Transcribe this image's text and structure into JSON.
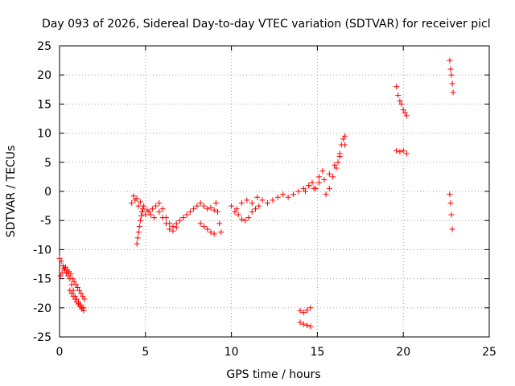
{
  "chart_data": {
    "type": "scatter",
    "title": "Day 093 of 2026, Sidereal Day-to-day VTEC variation (SDTVAR) for receiver picl",
    "xlabel": "GPS time / hours",
    "ylabel": "SDTVAR / TECUs",
    "xlim": [
      0,
      25
    ],
    "ylim": [
      -25,
      25
    ],
    "xticks": [
      0,
      5,
      10,
      15,
      20,
      25
    ],
    "yticks": [
      -25,
      -20,
      -15,
      -10,
      -5,
      0,
      5,
      10,
      15,
      20,
      25
    ],
    "grid": true,
    "marker": "+",
    "color": "#ff0000",
    "segments": [
      {
        "x": [
          0.0,
          0.1,
          0.2,
          0.3,
          0.4,
          0.5,
          0.6,
          0.7,
          0.8,
          0.9,
          1.0,
          1.1,
          1.2,
          1.3,
          1.4
        ],
        "y": [
          -11.5,
          -12.0,
          -12.8,
          -13.5,
          -14.0,
          -14.5,
          -15.0,
          -16.0,
          -17.0,
          -18.0,
          -18.5,
          -19.0,
          -19.5,
          -20.0,
          -20.5
        ]
      },
      {
        "x": [
          0.05,
          0.15,
          0.25,
          0.35,
          0.45,
          0.55,
          0.65,
          0.75,
          0.85,
          0.95,
          1.05,
          1.15,
          1.25,
          1.35,
          1.45
        ],
        "y": [
          -14.5,
          -14.0,
          -13.2,
          -13.0,
          -13.5,
          -13.8,
          -14.2,
          -15.0,
          -15.5,
          -16.0,
          -16.5,
          -17.0,
          -17.5,
          -18.0,
          -18.5
        ]
      },
      {
        "x": [
          0.6,
          0.7,
          0.8,
          0.9,
          1.0,
          1.1,
          1.2,
          1.3,
          1.4
        ],
        "y": [
          -17.0,
          -17.5,
          -18.0,
          -18.5,
          -19.0,
          -19.3,
          -19.8,
          -20.2,
          -20.0
        ]
      },
      {
        "x": [
          4.2,
          4.4,
          4.6,
          4.8,
          5.0,
          5.2,
          5.4,
          5.6,
          5.8,
          6.0,
          6.2,
          6.4,
          6.6,
          6.8,
          7.0,
          7.2,
          7.4,
          7.6,
          7.8,
          8.0,
          8.2,
          8.4,
          8.6,
          8.8,
          9.0
        ],
        "y": [
          -2.0,
          -1.5,
          -2.5,
          -3.5,
          -4.0,
          -3.5,
          -3.0,
          -2.5,
          -2.0,
          -3.0,
          -4.5,
          -5.5,
          -6.0,
          -5.5,
          -5.0,
          -4.5,
          -4.0,
          -3.5,
          -3.0,
          -2.5,
          -2.0,
          -2.5,
          -3.0,
          -2.8,
          -3.2
        ]
      },
      {
        "x": [
          4.5,
          4.55,
          4.6,
          4.65,
          4.7,
          4.75,
          4.8,
          4.85
        ],
        "y": [
          -9.0,
          -8.0,
          -7.0,
          -6.0,
          -5.0,
          -4.2,
          -3.5,
          -3.0
        ]
      },
      {
        "x": [
          4.3,
          4.5,
          4.7,
          4.9,
          5.1,
          5.3,
          5.5
        ],
        "y": [
          -0.8,
          -1.2,
          -1.8,
          -2.5,
          -3.2,
          -4.0,
          -4.5
        ]
      },
      {
        "x": [
          5.8,
          6.0,
          6.2,
          6.4,
          6.6,
          6.8
        ],
        "y": [
          -3.5,
          -4.5,
          -5.5,
          -6.5,
          -6.8,
          -6.2
        ]
      },
      {
        "x": [
          8.2,
          8.4,
          8.6,
          8.8,
          9.0
        ],
        "y": [
          -5.5,
          -6.0,
          -6.5,
          -7.0,
          -7.3
        ]
      },
      {
        "x": [
          9.1,
          9.2,
          9.3,
          9.4
        ],
        "y": [
          -2.0,
          -3.5,
          -5.5,
          -7.0
        ]
      },
      {
        "x": [
          10.0,
          10.3,
          10.6,
          10.9,
          11.2,
          11.5,
          11.8,
          12.1,
          12.4,
          12.7,
          13.0,
          13.3,
          13.6,
          13.9,
          14.2,
          14.5,
          14.8,
          15.1,
          15.4,
          15.7,
          16.0,
          16.3,
          16.6
        ],
        "y": [
          -2.5,
          -3.0,
          -2.0,
          -1.5,
          -2.0,
          -1.0,
          -1.5,
          -2.0,
          -1.5,
          -1.0,
          -0.5,
          -1.0,
          -0.5,
          0.0,
          0.5,
          1.0,
          0.5,
          1.5,
          2.0,
          3.0,
          4.5,
          6.0,
          8.0
        ]
      },
      {
        "x": [
          10.2,
          10.4,
          10.6,
          10.8,
          11.0,
          11.2,
          11.4,
          11.6
        ],
        "y": [
          -3.5,
          -4.0,
          -4.8,
          -5.0,
          -4.5,
          -3.5,
          -3.0,
          -2.5
        ]
      },
      {
        "x": [
          14.3,
          14.5,
          14.7,
          14.9,
          15.1,
          15.3,
          15.5,
          15.7,
          15.9,
          16.1
        ],
        "y": [
          0.0,
          1.0,
          1.5,
          0.5,
          2.5,
          3.5,
          -0.5,
          0.5,
          2.5,
          4.0
        ]
      },
      {
        "x": [
          16.2,
          16.3,
          16.4,
          16.5,
          16.6
        ],
        "y": [
          5.0,
          6.5,
          8.0,
          9.0,
          9.5
        ]
      },
      {
        "x": [
          14.0,
          14.2,
          14.4,
          14.6
        ],
        "y": [
          -20.5,
          -20.8,
          -20.4,
          -20.0
        ]
      },
      {
        "x": [
          14.0,
          14.2,
          14.4,
          14.6
        ],
        "y": [
          -22.5,
          -22.8,
          -23.0,
          -23.2
        ]
      },
      {
        "x": [
          19.6,
          19.7,
          19.8,
          19.9,
          20.0,
          20.1,
          20.2
        ],
        "y": [
          18.0,
          16.5,
          15.5,
          15.0,
          14.0,
          13.5,
          13.0
        ]
      },
      {
        "x": [
          19.6,
          19.8,
          20.0,
          20.2
        ],
        "y": [
          7.0,
          6.8,
          7.0,
          6.5
        ]
      },
      {
        "x": [
          22.7,
          22.75,
          22.8,
          22.85,
          22.9
        ],
        "y": [
          22.5,
          21.0,
          20.0,
          18.5,
          17.0
        ]
      },
      {
        "x": [
          22.7,
          22.75,
          22.8,
          22.85
        ],
        "y": [
          -0.5,
          -2.0,
          -4.0,
          -6.5
        ]
      }
    ]
  }
}
